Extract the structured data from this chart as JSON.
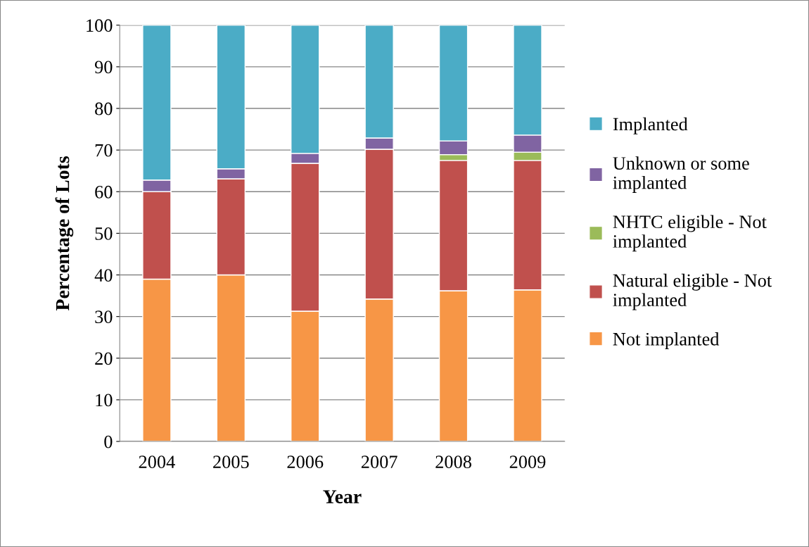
{
  "chart_data": {
    "type": "bar",
    "stacked": true,
    "xlabel": "Year",
    "ylabel": "Percentage of Lots",
    "categories": [
      "2004",
      "2005",
      "2006",
      "2007",
      "2008",
      "2009"
    ],
    "series": [
      {
        "name": "Not implanted",
        "color": "#f79646",
        "values": [
          39,
          40,
          31.3,
          34.2,
          36.2,
          36.4
        ]
      },
      {
        "name": "Natural eligible - Not implanted",
        "color": "#c0504d",
        "values": [
          21,
          23.1,
          35.5,
          36,
          31.3,
          31.1
        ]
      },
      {
        "name": "NHTC eligible - Not implanted",
        "color": "#9bbb59",
        "values": [
          0,
          0,
          0,
          0,
          1.4,
          2
        ]
      },
      {
        "name": "Unknown or some implanted",
        "color": "#8064a2",
        "values": [
          2.8,
          2.4,
          2.4,
          2.7,
          3.3,
          4.1
        ]
      },
      {
        "name": "Implanted",
        "color": "#4bacc6",
        "values": [
          37.2,
          34.5,
          30.8,
          27.1,
          27.8,
          26.4
        ]
      }
    ],
    "ylim": [
      0,
      100
    ],
    "yticks": [
      0,
      10,
      20,
      30,
      40,
      50,
      60,
      70,
      80,
      90,
      100
    ],
    "grid": "y",
    "legend": "right"
  }
}
